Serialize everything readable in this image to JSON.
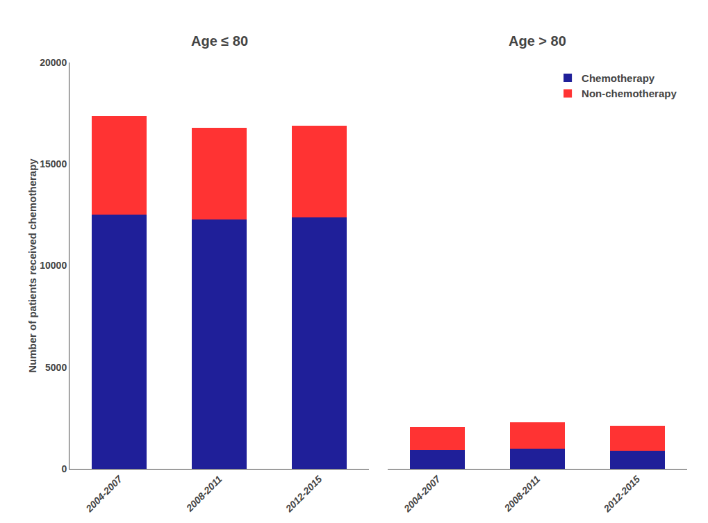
{
  "chart_data": [
    {
      "type": "bar",
      "title": "Age ≤ 80",
      "categories": [
        "2004-2007",
        "2008-2011",
        "2012-2015"
      ],
      "series": [
        {
          "name": "Chemotherapy",
          "color": "#1f1f99",
          "values": [
            12499,
            12264,
            12373
          ]
        },
        {
          "name": "Non-chemotherapy",
          "color": "#ff3333",
          "values": [
            4874,
            4520,
            4511
          ]
        }
      ],
      "stacked": true,
      "ylabel": "Number of patients received chemotherapy",
      "ylim": [
        0,
        20000
      ],
      "yticks": [
        0,
        5000,
        10000,
        15000,
        20000
      ],
      "grid": false
    },
    {
      "type": "bar",
      "title": "Age > 80",
      "categories": [
        "2004-2007",
        "2008-2011",
        "2012-2015"
      ],
      "series": [
        {
          "name": "Chemotherapy",
          "color": "#1f1f99",
          "values": [
            907,
            991,
            876
          ]
        },
        {
          "name": "Non-chemotherapy",
          "color": "#ff3333",
          "values": [
            1154,
            1309,
            1252
          ]
        }
      ],
      "stacked": true,
      "ylim": [
        0,
        20000
      ],
      "yticks": [
        0,
        5000,
        10000,
        15000,
        20000
      ],
      "grid": false,
      "tick_labels": "x",
      "legend": "upper right"
    }
  ]
}
